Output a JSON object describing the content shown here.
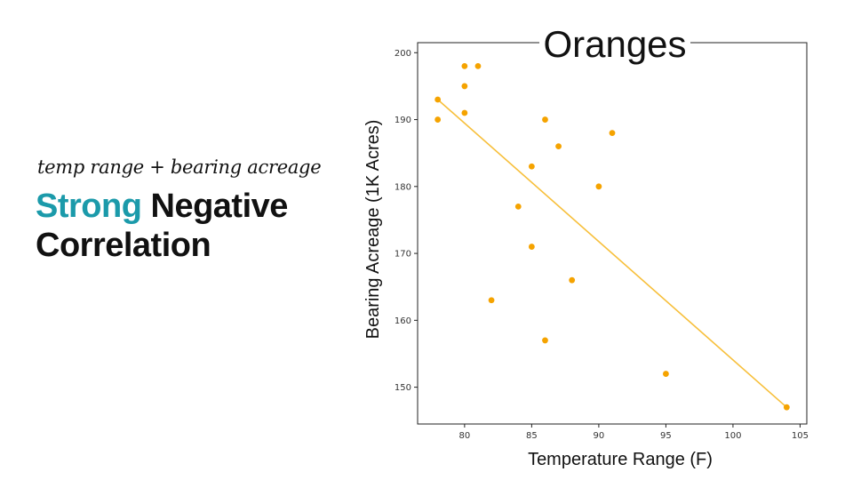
{
  "slide": {
    "subtitle": "temp range + bearing acreage",
    "headline_accent": "Strong",
    "headline_rest_1": "Negative",
    "headline_rest_2": "Correlation",
    "accent_color": "#1b9aaa"
  },
  "chart_data": {
    "type": "scatter",
    "title": "Oranges",
    "xlabel": "Temperature Range (F)",
    "ylabel": "Bearing Acreage (1K Acres)",
    "xlim": [
      76.5,
      105.5
    ],
    "ylim": [
      144.5,
      201.5
    ],
    "xticks": [
      80,
      85,
      90,
      95,
      100,
      105
    ],
    "yticks": [
      150,
      160,
      170,
      180,
      190,
      200
    ],
    "grid": false,
    "marker_color": "#f5a300",
    "line_color": "#f7bf3a",
    "points": [
      {
        "x": 78,
        "y": 193
      },
      {
        "x": 78,
        "y": 190
      },
      {
        "x": 80,
        "y": 198
      },
      {
        "x": 80,
        "y": 195
      },
      {
        "x": 80,
        "y": 191
      },
      {
        "x": 81,
        "y": 198
      },
      {
        "x": 82,
        "y": 163
      },
      {
        "x": 84,
        "y": 177
      },
      {
        "x": 85,
        "y": 183
      },
      {
        "x": 85,
        "y": 171
      },
      {
        "x": 86,
        "y": 190
      },
      {
        "x": 86,
        "y": 157
      },
      {
        "x": 87,
        "y": 186
      },
      {
        "x": 88,
        "y": 166
      },
      {
        "x": 90,
        "y": 180
      },
      {
        "x": 91,
        "y": 188
      },
      {
        "x": 95,
        "y": 152
      },
      {
        "x": 104,
        "y": 147
      }
    ],
    "trendline": {
      "x": [
        78,
        104
      ],
      "y": [
        193,
        147
      ]
    }
  }
}
